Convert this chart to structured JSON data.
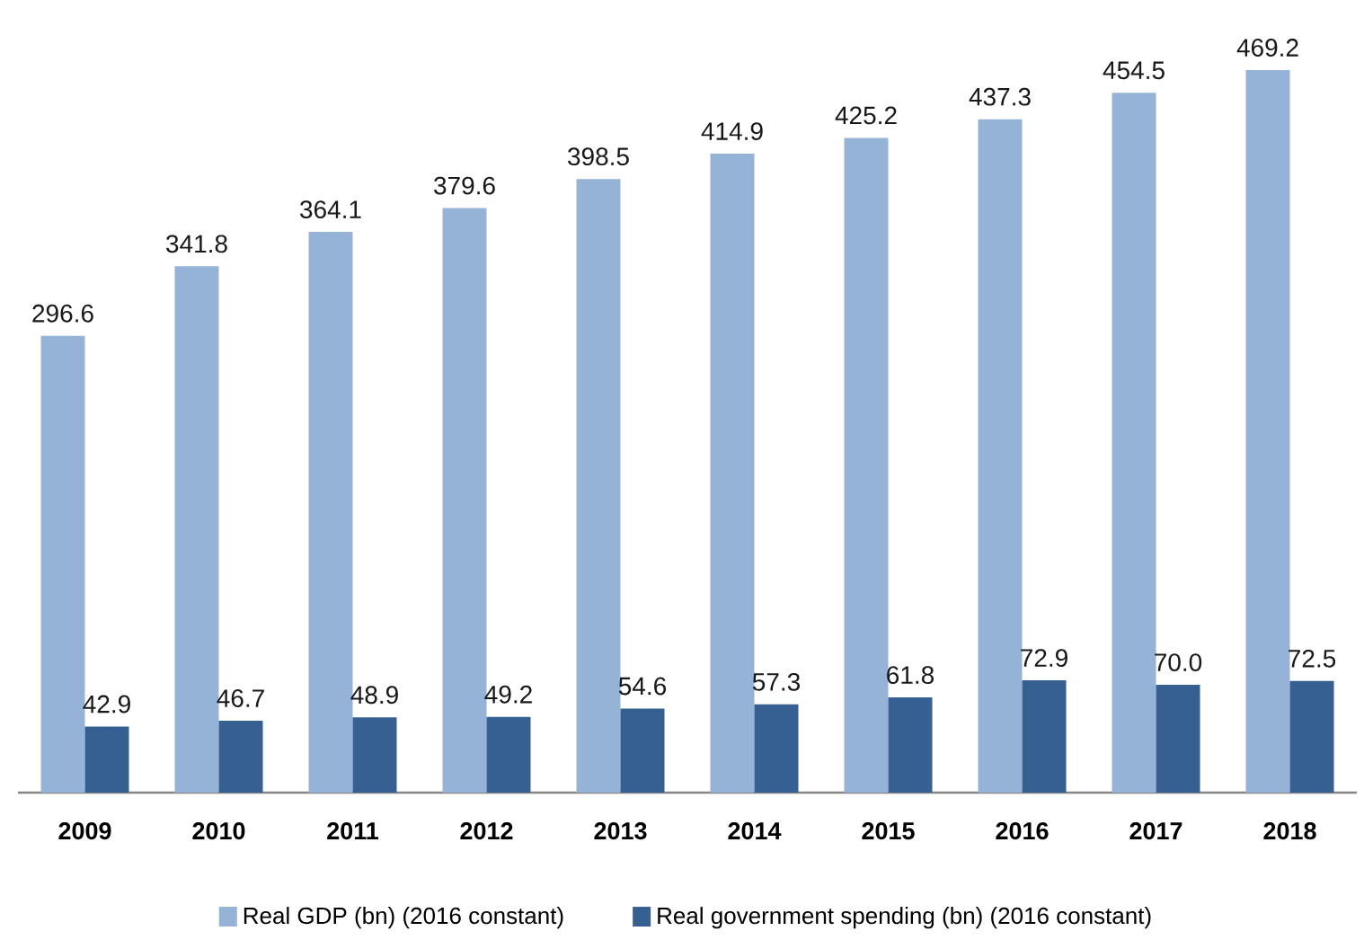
{
  "chart_data": {
    "type": "bar",
    "categories": [
      "2009",
      "2010",
      "2011",
      "2012",
      "2013",
      "2014",
      "2015",
      "2016",
      "2017",
      "2018"
    ],
    "series": [
      {
        "name": "Real GDP (bn) (2016 constant)",
        "color": "#95b3d7",
        "values": [
          296.6,
          341.8,
          364.1,
          379.6,
          398.5,
          414.9,
          425.2,
          437.3,
          454.5,
          469.2
        ],
        "value_labels": [
          "296.6",
          "341.8",
          "364.1",
          "379.6",
          "398.5",
          "414.9",
          "425.2",
          "437.3",
          "454.5",
          "469.2"
        ]
      },
      {
        "name": "Real government spending (bn) (2016 constant)",
        "color": "#376092",
        "values": [
          42.9,
          46.7,
          48.9,
          49.2,
          54.6,
          57.3,
          61.8,
          72.9,
          70.0,
          72.5
        ],
        "value_labels": [
          "42.9",
          "46.7",
          "48.9",
          "49.2",
          "54.6",
          "57.3",
          "61.8",
          "72.9",
          "70.0",
          "72.5"
        ]
      }
    ],
    "legend": "bottom",
    "tick_labels": "x"
  }
}
